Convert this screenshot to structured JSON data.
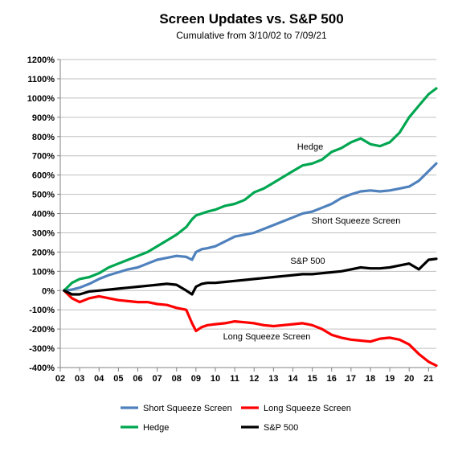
{
  "chart_data": {
    "type": "line",
    "title": "Screen Updates vs. S&P 500",
    "subtitle": "Cumulative from 3/10/02 to 7/09/21",
    "xlabel": "",
    "ylabel": "",
    "x_ticks": [
      "02",
      "03",
      "04",
      "05",
      "06",
      "07",
      "08",
      "09",
      "10",
      "11",
      "12",
      "13",
      "14",
      "15",
      "16",
      "17",
      "18",
      "19",
      "20",
      "21"
    ],
    "xlim": [
      2002,
      2021.4
    ],
    "y_ticks": [
      "1200%",
      "1100%",
      "1000%",
      "900%",
      "800%",
      "700%",
      "600%",
      "500%",
      "400%",
      "300%",
      "200%",
      "100%",
      "0%",
      "-100%",
      "-200%",
      "-300%",
      "-400%"
    ],
    "ylim": [
      -400,
      1200
    ],
    "grid": "horizontal",
    "legend_position": "bottom",
    "x": [
      2002.2,
      2002.6,
      2003,
      2003.5,
      2004,
      2004.5,
      2005,
      2005.5,
      2006,
      2006.5,
      2007,
      2007.5,
      2008,
      2008.5,
      2008.8,
      2009,
      2009.3,
      2009.6,
      2010,
      2010.5,
      2011,
      2011.5,
      2012,
      2012.5,
      2013,
      2013.5,
      2014,
      2014.5,
      2015,
      2015.5,
      2016,
      2016.5,
      2017,
      2017.5,
      2018,
      2018.5,
      2019,
      2019.5,
      2020,
      2020.5,
      2021,
      2021.4
    ],
    "series": [
      {
        "name": "Short Squeeze Screen",
        "color": "#4f81bd",
        "values": [
          0,
          5,
          15,
          35,
          60,
          80,
          95,
          110,
          120,
          140,
          160,
          170,
          180,
          175,
          160,
          200,
          215,
          220,
          230,
          255,
          280,
          290,
          300,
          320,
          340,
          360,
          380,
          400,
          410,
          430,
          450,
          480,
          500,
          515,
          520,
          515,
          520,
          530,
          540,
          570,
          620,
          660
        ]
      },
      {
        "name": "Long Squeeze Screen",
        "color": "#ff0000",
        "values": [
          0,
          -40,
          -60,
          -40,
          -30,
          -40,
          -50,
          -55,
          -60,
          -60,
          -70,
          -75,
          -90,
          -100,
          -170,
          -210,
          -190,
          -180,
          -175,
          -170,
          -160,
          -165,
          -170,
          -180,
          -185,
          -180,
          -175,
          -170,
          -180,
          -200,
          -230,
          -245,
          -255,
          -260,
          -265,
          -250,
          -245,
          -255,
          -280,
          -330,
          -370,
          -390
        ]
      },
      {
        "name": "Hedge",
        "color": "#00a650",
        "values": [
          0,
          40,
          60,
          70,
          90,
          120,
          140,
          160,
          180,
          200,
          230,
          260,
          290,
          330,
          370,
          390,
          400,
          410,
          420,
          440,
          450,
          470,
          510,
          530,
          560,
          590,
          620,
          650,
          660,
          680,
          720,
          740,
          770,
          790,
          760,
          750,
          770,
          820,
          900,
          960,
          1020,
          1050
        ]
      },
      {
        "name": "S&P 500",
        "color": "#000000",
        "values": [
          0,
          -20,
          -20,
          -5,
          0,
          5,
          10,
          15,
          20,
          25,
          30,
          35,
          30,
          0,
          -20,
          20,
          35,
          40,
          40,
          45,
          50,
          55,
          60,
          65,
          70,
          75,
          80,
          85,
          85,
          90,
          95,
          100,
          110,
          120,
          115,
          115,
          120,
          130,
          140,
          110,
          160,
          165
        ]
      }
    ],
    "annotations": [
      {
        "text": "Hedge",
        "series": "Hedge"
      },
      {
        "text": "Short Squeeze  Screen",
        "series": "Short Squeeze Screen"
      },
      {
        "text": "S&P 500",
        "series": "S&P 500"
      },
      {
        "text": "Long Squeeze Screen",
        "series": "Long Squeeze Screen"
      }
    ]
  }
}
